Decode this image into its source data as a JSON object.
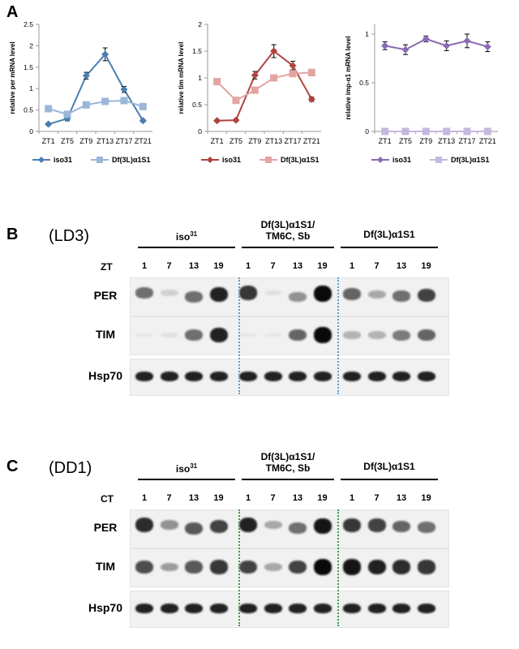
{
  "panel_a": {
    "letter": "A"
  },
  "chart_data": [
    {
      "type": "line",
      "categories": [
        "ZT1",
        "ZT5",
        "ZT9",
        "ZT13",
        "ZT17",
        "ZT21"
      ],
      "ylabel": "relative per mRNA level",
      "ylim": [
        0,
        2.5
      ],
      "yticks": [
        "0",
        "0.5",
        "1",
        "1.5",
        "2",
        "2.5"
      ],
      "series": [
        {
          "name": "iso31",
          "values": [
            0.17,
            0.3,
            1.3,
            1.8,
            0.98,
            0.25
          ],
          "errors": [
            0.03,
            0.05,
            0.08,
            0.15,
            0.07,
            0.03
          ],
          "color": "#4a7eb0",
          "marker": "diamond"
        },
        {
          "name": "Df(3L)α1S1",
          "values": [
            0.53,
            0.4,
            0.62,
            0.7,
            0.72,
            0.58
          ],
          "errors": [
            0.04,
            0.04,
            0.05,
            0.05,
            0.06,
            0.05
          ],
          "color": "#9ab7d9",
          "marker": "square"
        }
      ]
    },
    {
      "type": "line",
      "categories": [
        "ZT1",
        "ZT5",
        "ZT9",
        "ZT13",
        "ZT17",
        "ZT21"
      ],
      "ylabel": "relative tim mRNA level",
      "ylim": [
        0,
        2
      ],
      "yticks": [
        "0",
        "0.5",
        "1",
        "1.5",
        "2"
      ],
      "series": [
        {
          "name": "iso31",
          "values": [
            0.2,
            0.21,
            1.05,
            1.5,
            1.23,
            0.6
          ],
          "errors": [
            0.02,
            0.02,
            0.07,
            0.12,
            0.08,
            0.04
          ],
          "color": "#b0433f",
          "marker": "diamond"
        },
        {
          "name": "Df(3L)α1S1",
          "values": [
            0.93,
            0.58,
            0.77,
            1.0,
            1.08,
            1.1
          ],
          "errors": [
            0.04,
            0.04,
            0.05,
            0.05,
            0.05,
            0.06
          ],
          "color": "#e3a4a2",
          "marker": "square"
        }
      ]
    },
    {
      "type": "line",
      "categories": [
        "ZT1",
        "ZT5",
        "ZT9",
        "ZT13",
        "ZT17",
        "ZT21"
      ],
      "ylabel": "relative imp-α1 mRNA level",
      "ylim": [
        0,
        1.1
      ],
      "yticks": [
        "0",
        "0.5",
        "1"
      ],
      "series": [
        {
          "name": "iso31",
          "values": [
            0.88,
            0.84,
            0.95,
            0.88,
            0.93,
            0.87
          ],
          "errors": [
            0.04,
            0.05,
            0.03,
            0.05,
            0.07,
            0.05
          ],
          "color": "#8a6ab3",
          "marker": "diamond"
        },
        {
          "name": "Df(3L)α1S1",
          "values": [
            0,
            0,
            0,
            0,
            0,
            0
          ],
          "errors": [
            0,
            0,
            0,
            0,
            0,
            0
          ],
          "color": "#c5b8de",
          "marker": "square"
        }
      ]
    }
  ],
  "panels": [
    {
      "letter": "B",
      "condition": "(LD3)",
      "time_label": "ZT",
      "divider_color": "#5a9fd4",
      "groups": [
        {
          "label": "iso",
          "sup": "31",
          "times": [
            "1",
            "7",
            "13",
            "19"
          ]
        },
        {
          "label": "Df(3L)α1S1/\nTM6C, Sb",
          "sup": "",
          "times": [
            "1",
            "7",
            "13",
            "19"
          ]
        },
        {
          "label": "Df(3L)α1S1",
          "sup": "",
          "times": [
            "1",
            "7",
            "13",
            "19"
          ]
        }
      ],
      "rows": [
        {
          "label": "PER",
          "intensities": [
            0.55,
            0.12,
            0.55,
            0.9,
            0.8,
            0.05,
            0.4,
            1.0,
            0.6,
            0.3,
            0.55,
            0.75
          ],
          "shift": [
            0,
            0,
            0.35,
            0.15,
            0,
            0,
            0.35,
            0.1,
            0.1,
            0.15,
            0.3,
            0.2
          ]
        },
        {
          "label": "TIM",
          "intensities": [
            0.02,
            0.05,
            0.55,
            0.9,
            0.02,
            0.02,
            0.6,
            1.0,
            0.25,
            0.25,
            0.5,
            0.6
          ],
          "shift": [
            0,
            0,
            0,
            0,
            0,
            0,
            0,
            0,
            0,
            0,
            0,
            0
          ]
        },
        {
          "label": "Hsp70",
          "intensities": [
            0.9,
            0.9,
            0.9,
            0.9,
            0.9,
            0.9,
            0.9,
            0.9,
            0.9,
            0.9,
            0.9,
            0.9
          ],
          "shift": [
            0,
            0,
            0,
            0,
            0,
            0,
            0,
            0,
            0,
            0,
            0,
            0
          ]
        }
      ]
    },
    {
      "letter": "C",
      "condition": "(DD1)",
      "time_label": "CT",
      "divider_color": "#3a9e4a",
      "groups": [
        {
          "label": "iso",
          "sup": "31",
          "times": [
            "1",
            "7",
            "13",
            "19"
          ]
        },
        {
          "label": "Df(3L)α1S1/\nTM6C, Sb",
          "sup": "",
          "times": [
            "1",
            "7",
            "13",
            "19"
          ]
        },
        {
          "label": "Df(3L)α1S1",
          "sup": "",
          "times": [
            "1",
            "7",
            "13",
            "19"
          ]
        }
      ],
      "rows": [
        {
          "label": "PER",
          "intensities": [
            0.85,
            0.4,
            0.65,
            0.75,
            0.9,
            0.3,
            0.55,
            0.95,
            0.8,
            0.75,
            0.6,
            0.55
          ],
          "shift": [
            0,
            0,
            0.35,
            0.15,
            0,
            0,
            0.3,
            0.1,
            0.05,
            0.05,
            0.15,
            0.2
          ]
        },
        {
          "label": "TIM",
          "intensities": [
            0.7,
            0.35,
            0.65,
            0.8,
            0.75,
            0.3,
            0.75,
            1.0,
            0.95,
            0.9,
            0.85,
            0.8
          ],
          "shift": [
            0,
            0,
            0,
            0,
            0,
            0,
            0,
            0,
            0,
            0,
            0,
            0
          ]
        },
        {
          "label": "Hsp70",
          "intensities": [
            0.9,
            0.9,
            0.9,
            0.9,
            0.9,
            0.9,
            0.9,
            0.9,
            0.9,
            0.9,
            0.9,
            0.9
          ],
          "shift": [
            0,
            0,
            0,
            0,
            0,
            0,
            0,
            0,
            0,
            0,
            0,
            0
          ]
        }
      ]
    }
  ]
}
